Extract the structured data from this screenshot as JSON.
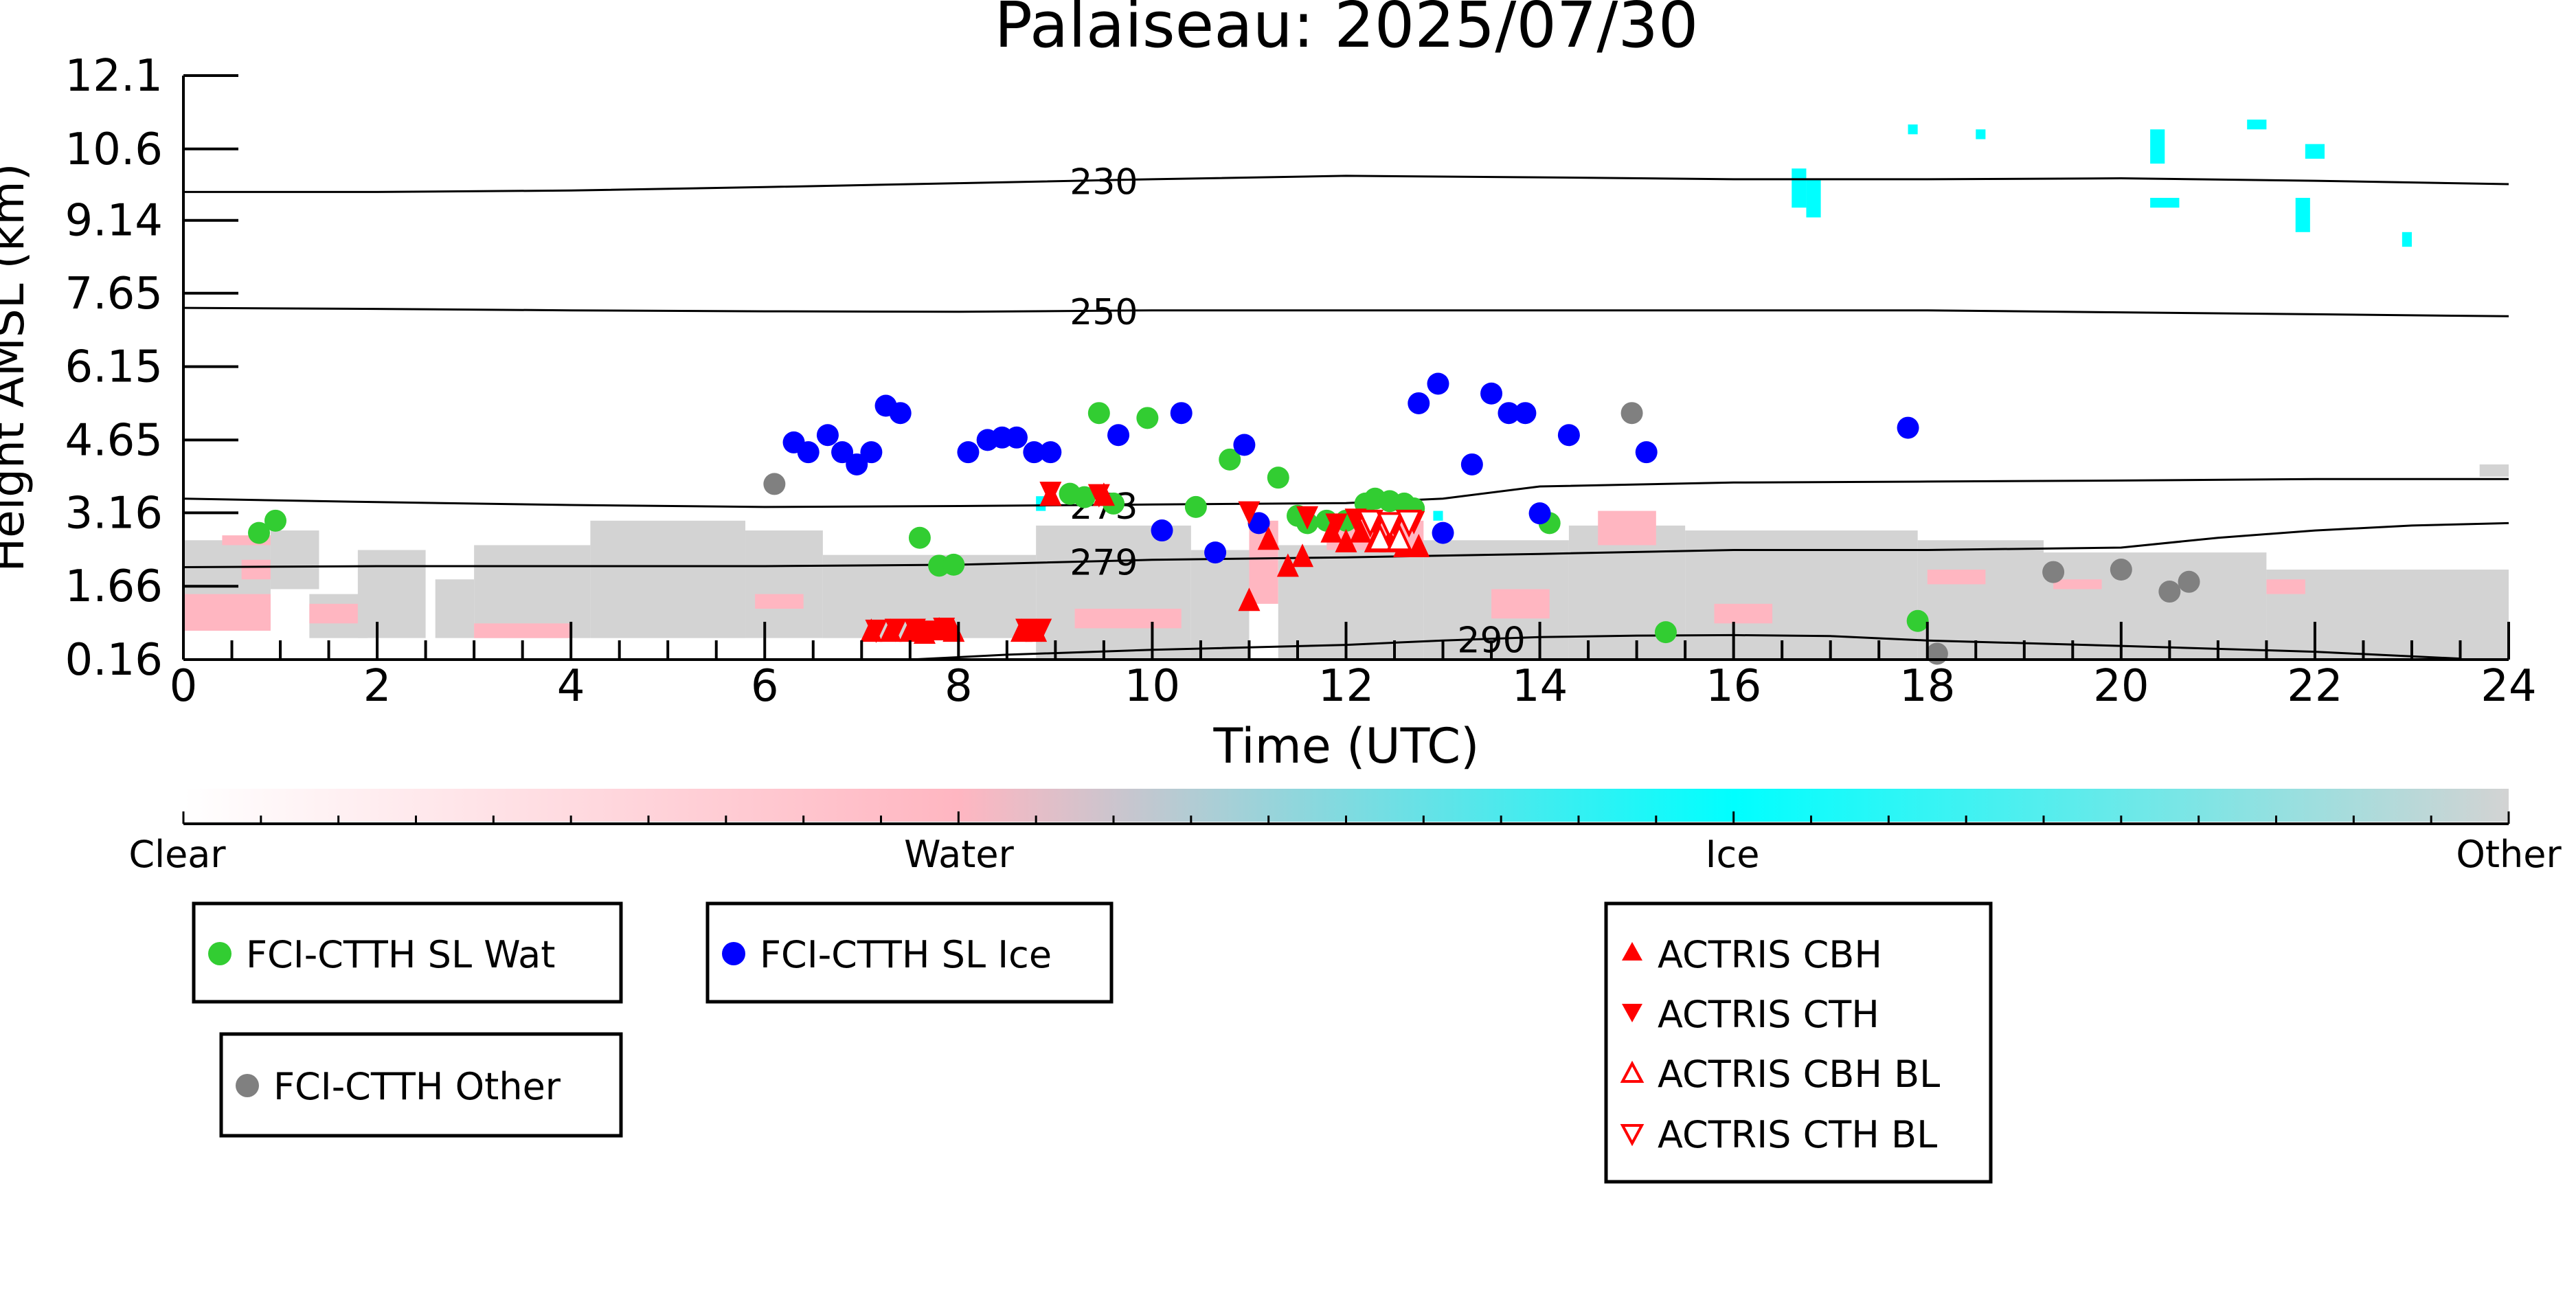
{
  "chart_data": {
    "type": "scatter",
    "title": "Palaiseau: 2025/07/30",
    "xlabel": "Time (UTC)",
    "ylabel": "Height AMSL (km)",
    "xlim": [
      0,
      24
    ],
    "ylim": [
      0.16,
      12.1
    ],
    "x_ticks": [
      0,
      2,
      4,
      6,
      8,
      10,
      12,
      14,
      16,
      18,
      20,
      22,
      24
    ],
    "y_ticks": [
      "0.16",
      "1.66",
      "3.16",
      "4.65",
      "6.15",
      "7.65",
      "9.14",
      "10.6",
      "12.1"
    ],
    "colorbar": {
      "labels": [
        "Clear",
        "Water",
        "Ice",
        "Other"
      ],
      "colors": [
        "#ffffff",
        "#ffb6c1",
        "#00ffff",
        "#d3d3d3"
      ]
    },
    "colors": {
      "water": "#32cd32",
      "ice": "#0000ff",
      "other": "#808080",
      "actris": "#ff0000",
      "cloud_water": "#ffb6c1",
      "cloud_ice": "#00ffff",
      "cloud_other": "#d3d3d3"
    },
    "legend": {
      "water": "FCI-CTTH SL Wat",
      "ice": "FCI-CTTH SL Ice",
      "other": "FCI-CTTH Other",
      "cbh": "ACTRIS CBH",
      "cth": "ACTRIS CTH",
      "cbh_bl": "ACTRIS CBH BL",
      "cth_bl": "ACTRIS CTH BL"
    },
    "temperature_contours": [
      {
        "label": "230",
        "label_x": 9.5,
        "points": [
          [
            0,
            9.72
          ],
          [
            2,
            9.72
          ],
          [
            4,
            9.75
          ],
          [
            6,
            9.82
          ],
          [
            8,
            9.9
          ],
          [
            10,
            9.98
          ],
          [
            12,
            10.05
          ],
          [
            14,
            10.02
          ],
          [
            16,
            9.98
          ],
          [
            18,
            9.98
          ],
          [
            20,
            10.0
          ],
          [
            22,
            9.95
          ],
          [
            24,
            9.88
          ]
        ]
      },
      {
        "label": "250",
        "label_x": 9.5,
        "points": [
          [
            0,
            7.35
          ],
          [
            2,
            7.33
          ],
          [
            4,
            7.3
          ],
          [
            6,
            7.28
          ],
          [
            8,
            7.27
          ],
          [
            10,
            7.3
          ],
          [
            12,
            7.3
          ],
          [
            14,
            7.3
          ],
          [
            16,
            7.3
          ],
          [
            18,
            7.3
          ],
          [
            20,
            7.26
          ],
          [
            22,
            7.22
          ],
          [
            24,
            7.18
          ]
        ]
      },
      {
        "label": "273",
        "label_x": 9.5,
        "points": [
          [
            0,
            3.45
          ],
          [
            2,
            3.38
          ],
          [
            4,
            3.32
          ],
          [
            6,
            3.28
          ],
          [
            8,
            3.3
          ],
          [
            10,
            3.33
          ],
          [
            12,
            3.36
          ],
          [
            13,
            3.45
          ],
          [
            14,
            3.7
          ],
          [
            16,
            3.78
          ],
          [
            18,
            3.8
          ],
          [
            20,
            3.82
          ],
          [
            22,
            3.85
          ],
          [
            24,
            3.85
          ]
        ]
      },
      {
        "label": "279",
        "label_x": 9.5,
        "points": [
          [
            0,
            2.05
          ],
          [
            2,
            2.07
          ],
          [
            4,
            2.07
          ],
          [
            6,
            2.07
          ],
          [
            8,
            2.1
          ],
          [
            10,
            2.2
          ],
          [
            12,
            2.25
          ],
          [
            14,
            2.32
          ],
          [
            16,
            2.4
          ],
          [
            18,
            2.4
          ],
          [
            20,
            2.45
          ],
          [
            21,
            2.65
          ],
          [
            22,
            2.8
          ],
          [
            23,
            2.9
          ],
          [
            24,
            2.95
          ]
        ]
      },
      {
        "label": "290",
        "label_x": 13.5,
        "points": [
          [
            7.5,
            0.16
          ],
          [
            8.5,
            0.26
          ],
          [
            10,
            0.36
          ],
          [
            12,
            0.46
          ],
          [
            13,
            0.55
          ],
          [
            14,
            0.62
          ],
          [
            15,
            0.65
          ],
          [
            16,
            0.66
          ],
          [
            17,
            0.64
          ],
          [
            18,
            0.55
          ],
          [
            20,
            0.44
          ],
          [
            22,
            0.32
          ],
          [
            23.5,
            0.18
          ]
        ]
      }
    ],
    "fci_water": {
      "x": [
        0.78,
        0.95,
        7.6,
        7.8,
        7.95,
        9.15,
        9.3,
        9.45,
        9.6,
        9.95,
        10.45,
        10.8,
        11.3,
        11.5,
        11.6,
        11.8,
        12.0,
        12.2,
        12.3,
        12.45,
        12.6,
        12.7,
        14.1,
        15.3,
        17.9
      ],
      "y": [
        2.75,
        3.0,
        2.65,
        2.08,
        2.1,
        3.55,
        3.48,
        5.2,
        3.35,
        5.1,
        3.28,
        4.25,
        3.88,
        3.1,
        2.95,
        3.0,
        3.0,
        3.35,
        3.45,
        3.4,
        3.35,
        3.25,
        2.95,
        0.72,
        0.95
      ]
    },
    "fci_ice": {
      "x": [
        6.3,
        6.45,
        6.65,
        6.8,
        6.95,
        7.1,
        7.25,
        7.4,
        8.1,
        8.3,
        8.45,
        8.6,
        8.78,
        8.95,
        9.65,
        10.1,
        10.3,
        10.65,
        10.95,
        11.1,
        12.75,
        12.95,
        13.3,
        13.5,
        13.68,
        13.85,
        14.0,
        14.3,
        15.1,
        17.8,
        13.0
      ],
      "y": [
        4.6,
        4.4,
        4.75,
        4.4,
        4.15,
        4.4,
        5.35,
        5.2,
        4.4,
        4.65,
        4.7,
        4.7,
        4.4,
        4.4,
        4.75,
        2.8,
        5.2,
        2.35,
        4.55,
        2.95,
        5.4,
        5.8,
        4.15,
        5.6,
        5.2,
        5.2,
        3.15,
        4.75,
        4.4,
        4.9,
        2.75
      ]
    },
    "fci_other": {
      "x": [
        6.1,
        14.95,
        18.1,
        19.3,
        20.0,
        20.5,
        20.7
      ],
      "y": [
        3.75,
        5.2,
        0.28,
        1.95,
        2.0,
        1.55,
        1.75
      ]
    },
    "actris_cbh": {
      "x": [
        7.1,
        7.3,
        7.5,
        7.65,
        7.8,
        7.95,
        8.65,
        8.8,
        8.95,
        9.5,
        11.0,
        11.2,
        11.4,
        11.55,
        11.85,
        12.0,
        12.15,
        12.3,
        12.45,
        12.6,
        12.75
      ],
      "y": [
        0.72,
        0.72,
        0.72,
        0.68,
        0.75,
        0.72,
        0.72,
        0.72,
        3.5,
        3.5,
        1.35,
        2.6,
        2.05,
        2.25,
        2.75,
        2.55,
        2.75,
        2.55,
        2.55,
        2.45,
        2.45
      ]
    },
    "actris_cth": {
      "x": [
        7.15,
        7.35,
        7.55,
        7.7,
        7.85,
        8.7,
        8.85,
        8.95,
        9.45,
        11.0,
        11.6,
        11.9,
        12.1,
        12.3,
        12.5,
        12.7
      ],
      "y": [
        0.78,
        0.8,
        0.8,
        0.76,
        0.82,
        0.8,
        0.8,
        3.6,
        3.55,
        3.2,
        3.1,
        2.95,
        3.05,
        2.95,
        2.95,
        3.0
      ]
    },
    "actris_cbh_bl": {
      "x": [
        12.35,
        12.55
      ],
      "y": [
        2.6,
        2.6
      ]
    },
    "actris_cth_bl": {
      "x": [
        12.25,
        12.45,
        12.65
      ],
      "y": [
        3.0,
        2.95,
        3.0
      ]
    },
    "cloud_segments": [
      {
        "class": "other",
        "x0": 0.0,
        "x1": 0.9,
        "y0": 0.8,
        "y1": 2.6
      },
      {
        "class": "water",
        "x0": 0.0,
        "x1": 0.9,
        "y0": 0.75,
        "y1": 1.5
      },
      {
        "class": "water",
        "x0": 0.4,
        "x1": 0.9,
        "y0": 2.5,
        "y1": 2.7
      },
      {
        "class": "other",
        "x0": 0.9,
        "x1": 1.4,
        "y0": 1.6,
        "y1": 2.8
      },
      {
        "class": "water",
        "x0": 0.6,
        "x1": 0.9,
        "y0": 1.8,
        "y1": 2.2
      },
      {
        "class": "other",
        "x0": 1.3,
        "x1": 1.9,
        "y0": 0.6,
        "y1": 1.5
      },
      {
        "class": "water",
        "x0": 1.3,
        "x1": 2.1,
        "y0": 0.9,
        "y1": 1.3
      },
      {
        "class": "other",
        "x0": 1.8,
        "x1": 2.5,
        "y0": 0.6,
        "y1": 2.4
      },
      {
        "class": "other",
        "x0": 2.6,
        "x1": 3.0,
        "y0": 0.6,
        "y1": 1.8
      },
      {
        "class": "other",
        "x0": 3.0,
        "x1": 4.2,
        "y0": 0.6,
        "y1": 2.5
      },
      {
        "class": "water",
        "x0": 3.0,
        "x1": 4.0,
        "y0": 0.6,
        "y1": 0.9
      },
      {
        "class": "other",
        "x0": 4.2,
        "x1": 5.8,
        "y0": 0.6,
        "y1": 3.0
      },
      {
        "class": "other",
        "x0": 5.8,
        "x1": 6.6,
        "y0": 0.6,
        "y1": 2.8
      },
      {
        "class": "water",
        "x0": 5.9,
        "x1": 6.4,
        "y0": 1.2,
        "y1": 1.5
      },
      {
        "class": "other",
        "x0": 6.6,
        "x1": 8.8,
        "y0": 0.6,
        "y1": 2.3
      },
      {
        "class": "other",
        "x0": 8.8,
        "x1": 10.4,
        "y0": 0.16,
        "y1": 2.9
      },
      {
        "class": "water",
        "x0": 9.2,
        "x1": 10.3,
        "y0": 0.8,
        "y1": 1.2
      },
      {
        "class": "other",
        "x0": 10.4,
        "x1": 11.0,
        "y0": 0.16,
        "y1": 2.4
      },
      {
        "class": "water",
        "x0": 11.0,
        "x1": 11.3,
        "y0": 1.3,
        "y1": 3.0
      },
      {
        "class": "other",
        "x0": 11.3,
        "x1": 12.8,
        "y0": 0.16,
        "y1": 2.5
      },
      {
        "class": "water",
        "x0": 11.8,
        "x1": 12.8,
        "y0": 2.4,
        "y1": 3.0
      },
      {
        "class": "other",
        "x0": 12.8,
        "x1": 14.3,
        "y0": 0.16,
        "y1": 2.6
      },
      {
        "class": "water",
        "x0": 13.5,
        "x1": 14.1,
        "y0": 1.0,
        "y1": 1.6
      },
      {
        "class": "other",
        "x0": 14.3,
        "x1": 15.5,
        "y0": 0.16,
        "y1": 2.9
      },
      {
        "class": "water",
        "x0": 14.6,
        "x1": 15.2,
        "y0": 2.5,
        "y1": 3.2
      },
      {
        "class": "other",
        "x0": 15.5,
        "x1": 17.9,
        "y0": 0.16,
        "y1": 2.8
      },
      {
        "class": "water",
        "x0": 15.8,
        "x1": 16.4,
        "y0": 0.9,
        "y1": 1.3
      },
      {
        "class": "other",
        "x0": 17.9,
        "x1": 19.2,
        "y0": 0.16,
        "y1": 2.6
      },
      {
        "class": "water",
        "x0": 18.0,
        "x1": 18.6,
        "y0": 1.7,
        "y1": 2.0
      },
      {
        "class": "other",
        "x0": 19.2,
        "x1": 21.5,
        "y0": 0.16,
        "y1": 2.35
      },
      {
        "class": "water",
        "x0": 19.3,
        "x1": 19.8,
        "y0": 1.6,
        "y1": 1.8
      },
      {
        "class": "other",
        "x0": 21.5,
        "x1": 24.0,
        "y0": 0.16,
        "y1": 2.0
      },
      {
        "class": "water",
        "x0": 21.5,
        "x1": 21.9,
        "y0": 1.5,
        "y1": 1.8
      },
      {
        "class": "other",
        "x0": 23.7,
        "x1": 24.0,
        "y0": 3.9,
        "y1": 4.15
      },
      {
        "class": "ice",
        "x0": 16.6,
        "x1": 16.75,
        "y0": 9.4,
        "y1": 10.2
      },
      {
        "class": "ice",
        "x0": 16.75,
        "x1": 16.9,
        "y0": 9.2,
        "y1": 10.0
      },
      {
        "class": "ice",
        "x0": 17.8,
        "x1": 17.9,
        "y0": 10.9,
        "y1": 11.1
      },
      {
        "class": "ice",
        "x0": 18.5,
        "x1": 18.6,
        "y0": 10.8,
        "y1": 11.0
      },
      {
        "class": "ice",
        "x0": 20.3,
        "x1": 20.45,
        "y0": 10.3,
        "y1": 11.0
      },
      {
        "class": "ice",
        "x0": 20.3,
        "x1": 20.6,
        "y0": 9.4,
        "y1": 9.6
      },
      {
        "class": "ice",
        "x0": 21.3,
        "x1": 21.5,
        "y0": 11.0,
        "y1": 11.2
      },
      {
        "class": "ice",
        "x0": 21.9,
        "x1": 22.1,
        "y0": 10.4,
        "y1": 10.7
      },
      {
        "class": "ice",
        "x0": 21.8,
        "x1": 21.95,
        "y0": 8.9,
        "y1": 9.6
      },
      {
        "class": "ice",
        "x0": 22.9,
        "x1": 23.0,
        "y0": 8.6,
        "y1": 8.9
      },
      {
        "class": "ice",
        "x0": 12.9,
        "x1": 13.0,
        "y0": 3.0,
        "y1": 3.2
      },
      {
        "class": "ice",
        "x0": 8.8,
        "x1": 8.9,
        "y0": 3.2,
        "y1": 3.5
      }
    ]
  }
}
